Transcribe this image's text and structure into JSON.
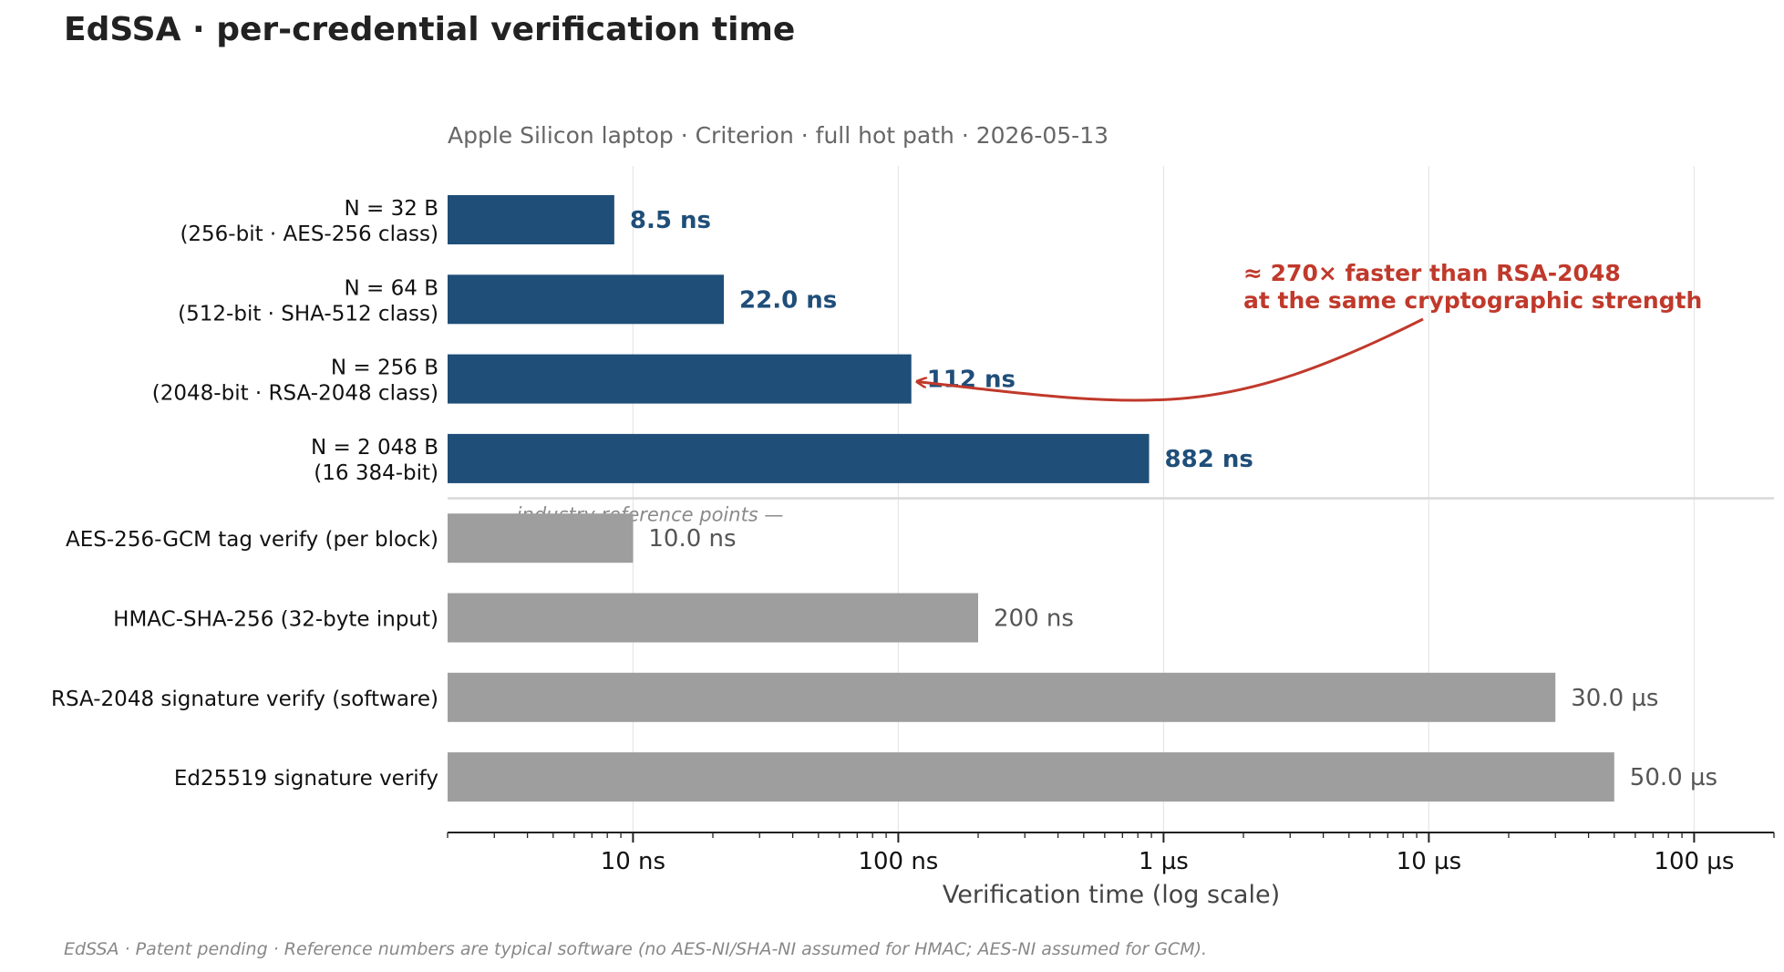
{
  "chart_data": {
    "type": "bar",
    "orientation": "horizontal",
    "title": "EdSSA · per-credential verification time",
    "subtitle": "Apple Silicon laptop · Criterion · full hot path · 2026-05-13",
    "xlabel": "Verification time (log scale)",
    "ylabel": "",
    "xscale": "log",
    "xlim": [
      2,
      200000
    ],
    "x_unit": "ns",
    "grid": "vertical",
    "x_ticks": [
      {
        "value": 10,
        "label": "10 ns"
      },
      {
        "value": 100,
        "label": "100 ns"
      },
      {
        "value": 1000,
        "label": "1 µs"
      },
      {
        "value": 10000,
        "label": "10 µs"
      },
      {
        "value": 100000,
        "label": "100 µs"
      }
    ],
    "groups": [
      {
        "name": "EdSSA",
        "color": "#1f4e79",
        "bars": [
          {
            "label_lines": [
              "N = 32 B",
              "(256-bit · AES-256 class)"
            ],
            "value": 8.5,
            "value_label": "8.5 ns"
          },
          {
            "label_lines": [
              "N = 64 B",
              "(512-bit · SHA-512 class)"
            ],
            "value": 22.0,
            "value_label": "22.0 ns"
          },
          {
            "label_lines": [
              "N = 256 B",
              "(2048-bit · RSA-2048 class)"
            ],
            "value": 112,
            "value_label": "112 ns"
          },
          {
            "label_lines": [
              "N = 2 048 B",
              "(16 384-bit)"
            ],
            "value": 882,
            "value_label": "882 ns"
          }
        ]
      },
      {
        "name": "— industry reference points —",
        "color": "#9e9e9e",
        "bars": [
          {
            "label_lines": [
              "AES-256-GCM tag verify (per block)"
            ],
            "value": 10.0,
            "value_label": "10.0 ns"
          },
          {
            "label_lines": [
              "HMAC-SHA-256 (32-byte input)"
            ],
            "value": 200,
            "value_label": "200 ns"
          },
          {
            "label_lines": [
              "RSA-2048 signature verify (software)"
            ],
            "value": 30000,
            "value_label": "30.0 µs"
          },
          {
            "label_lines": [
              "Ed25519 signature verify"
            ],
            "value": 50000,
            "value_label": "50.0 µs"
          }
        ]
      }
    ],
    "annotation": {
      "lines": [
        "≈ 270× faster than RSA-2048",
        "at the same cryptographic strength"
      ],
      "points_to": "N = 256 B",
      "color": "#c0392b"
    },
    "footnote": "EdSSA · Patent pending · Reference numbers are typical software (no AES-NI/SHA-NI assumed for HMAC; AES-NI assumed for GCM)."
  }
}
